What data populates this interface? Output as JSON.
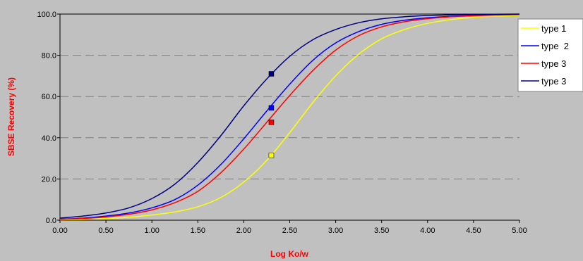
{
  "chart_data": {
    "type": "line",
    "xlabel": "Log Ko/w",
    "ylabel": "SBSE Recovery (%)",
    "xlim": [
      0,
      5
    ],
    "ylim": [
      0,
      100
    ],
    "x_ticks": [
      "0.00",
      "0.50",
      "1.00",
      "1.50",
      "2.00",
      "2.50",
      "3.00",
      "3.50",
      "4.00",
      "4.50",
      "5.00"
    ],
    "y_ticks": [
      "0.0",
      "20.0",
      "40.0",
      "60.0",
      "80.0",
      "100.0"
    ],
    "grid": "horizontal dashed",
    "legend": "right",
    "colors": {
      "background": "#c0c0c0",
      "plot_area": "#c0c0c0",
      "axis_title": "#ff0000",
      "grid": "#808080",
      "legend_background": "#ffffff"
    },
    "series": [
      {
        "name": "type 1",
        "color": "#ffff00",
        "x": [
          0.0,
          0.25,
          0.5,
          0.75,
          1.0,
          1.25,
          1.5,
          1.75,
          2.0,
          2.25,
          2.5,
          2.75,
          3.0,
          3.25,
          3.5,
          3.75,
          4.0,
          4.25,
          4.5,
          4.75,
          5.0
        ],
        "y": [
          0.2,
          0.4,
          0.8,
          1.4,
          2.5,
          4.0,
          6.5,
          11.0,
          18.5,
          29.0,
          42.5,
          57.0,
          70.0,
          80.5,
          88.0,
          92.5,
          95.5,
          97.3,
          98.4,
          99.0,
          99.3
        ],
        "marker": {
          "x": 2.3,
          "y": 31.5
        }
      },
      {
        "name": "type  2",
        "color": "#0000ff",
        "x": [
          0.0,
          0.25,
          0.5,
          0.75,
          1.0,
          1.25,
          1.5,
          1.75,
          2.0,
          2.25,
          2.5,
          2.75,
          3.0,
          3.25,
          3.5,
          3.75,
          4.0,
          4.25,
          4.5,
          4.75,
          5.0
        ],
        "y": [
          0.5,
          1.0,
          2.0,
          3.5,
          6.0,
          10.0,
          17.0,
          27.0,
          39.5,
          53.0,
          66.0,
          77.5,
          86.0,
          91.5,
          95.0,
          97.0,
          98.2,
          98.9,
          99.3,
          99.6,
          99.8
        ],
        "marker": {
          "x": 2.3,
          "y": 54.5
        }
      },
      {
        "name": "type 3",
        "color": "#ff0000",
        "x": [
          0.0,
          0.25,
          0.5,
          0.75,
          1.0,
          1.25,
          1.5,
          1.75,
          2.0,
          2.25,
          2.5,
          2.75,
          3.0,
          3.25,
          3.5,
          3.75,
          4.0,
          4.25,
          4.5,
          4.75,
          5.0
        ],
        "y": [
          0.4,
          0.8,
          1.6,
          2.9,
          5.0,
          8.5,
          14.0,
          23.0,
          34.5,
          47.5,
          60.5,
          72.5,
          82.5,
          89.5,
          93.8,
          96.3,
          97.8,
          98.7,
          99.2,
          99.5,
          99.7
        ],
        "marker": {
          "x": 2.3,
          "y": 47.5
        }
      },
      {
        "name": "type 3",
        "color": "#000080",
        "x": [
          0.0,
          0.25,
          0.5,
          0.75,
          1.0,
          1.25,
          1.5,
          1.75,
          2.0,
          2.25,
          2.5,
          2.75,
          3.0,
          3.25,
          3.5,
          3.75,
          4.0,
          4.25,
          4.5,
          4.75,
          5.0
        ],
        "y": [
          1.0,
          2.0,
          3.5,
          6.0,
          10.5,
          17.5,
          28.0,
          41.0,
          55.5,
          68.5,
          79.5,
          87.5,
          92.5,
          95.8,
          97.7,
          98.7,
          99.3,
          99.6,
          99.8,
          99.9,
          100.0
        ],
        "marker": {
          "x": 2.3,
          "y": 71.0
        }
      }
    ]
  }
}
